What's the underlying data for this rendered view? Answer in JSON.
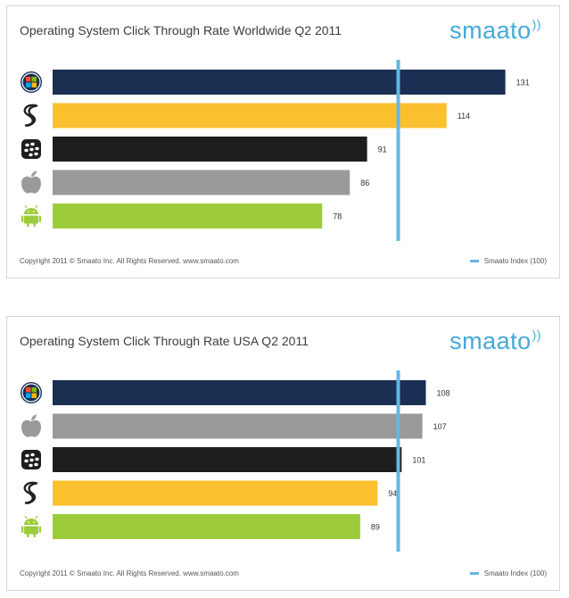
{
  "logo_text": "smaato",
  "copyright": "Copyright 2011 © Smaato Inc. All Rights Reserved. www.smaato.com",
  "legend_label": "Smaato Index (100)",
  "colors": {
    "windows": "#1a2f52",
    "symbian": "#fbc02d",
    "blackberry": "#1e1e1e",
    "ios": "#9a9a9a",
    "android": "#9ccc3c",
    "index_line": "#63b8e1",
    "logo": "#45a9d8"
  },
  "chart_data": [
    {
      "type": "bar",
      "title": "Operating System Click Through Rate Worldwide Q2 2011",
      "categories": [
        "windows-icon",
        "symbian-icon",
        "blackberry-icon",
        "apple-icon",
        "android-icon"
      ],
      "values": [
        131,
        114,
        91,
        86,
        78
      ],
      "reference_line": 100,
      "orientation": "horizontal"
    },
    {
      "type": "bar",
      "title": "Operating System Click Through Rate USA Q2 2011",
      "categories": [
        "windows-icon",
        "apple-icon",
        "blackberry-icon",
        "symbian-icon",
        "android-icon"
      ],
      "values": [
        108,
        107,
        101,
        94,
        89
      ],
      "reference_line": 100,
      "orientation": "horizontal"
    }
  ]
}
